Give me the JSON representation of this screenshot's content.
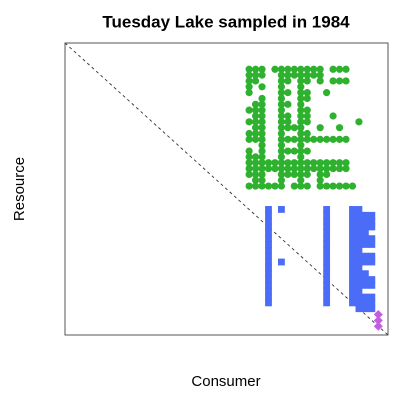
{
  "chart_data": {
    "type": "scatter",
    "title": "Tuesday Lake sampled in 1984",
    "x_label": "Consumer",
    "y_label": "Resource",
    "xlim": [
      0.5,
      50.5
    ],
    "ylim": [
      50.5,
      0.5
    ],
    "series": [
      {
        "color": "#2eb12e",
        "marker": "circle",
        "rows": [
          {
            "y": 5,
            "x": [
              29,
              30,
              31,
              33,
              34,
              35,
              36,
              37,
              38,
              39,
              40,
              42,
              43,
              44
            ]
          },
          {
            "y": 6,
            "x": [
              29,
              30,
              31,
              34,
              35,
              36,
              37,
              38,
              39,
              40
            ]
          },
          {
            "y": 7,
            "x": [
              29,
              30,
              34,
              35,
              37,
              38,
              40,
              42,
              43,
              44
            ]
          },
          {
            "y": 8,
            "x": [
              29,
              31,
              34,
              37
            ]
          },
          {
            "y": 9,
            "x": [
              29,
              34,
              35,
              37,
              38,
              41
            ]
          },
          {
            "y": 10,
            "x": [
              31,
              34,
              37,
              38
            ]
          },
          {
            "y": 11,
            "x": [
              30,
              31,
              34,
              35,
              37
            ]
          },
          {
            "y": 12,
            "x": [
              29,
              30,
              31,
              34,
              37,
              38
            ]
          },
          {
            "y": 13,
            "x": [
              30,
              31,
              34,
              35,
              37,
              38,
              42
            ]
          },
          {
            "y": 14,
            "x": [
              29,
              30,
              31,
              34,
              35,
              37,
              38,
              46
            ]
          },
          {
            "y": 15,
            "x": [
              30,
              31,
              34,
              35,
              36,
              37,
              40,
              43
            ]
          },
          {
            "y": 16,
            "x": [
              29,
              30,
              31,
              34,
              37,
              38
            ]
          },
          {
            "y": 17,
            "x": [
              29,
              30,
              31,
              34,
              35,
              36,
              37,
              38,
              39,
              40,
              41,
              42,
              43,
              44
            ]
          },
          {
            "y": 18,
            "x": [
              31,
              34,
              37
            ]
          },
          {
            "y": 19,
            "x": [
              29,
              31,
              34,
              35,
              36,
              37,
              38
            ]
          },
          {
            "y": 20,
            "x": [
              29,
              30,
              31,
              34,
              37
            ]
          },
          {
            "y": 21,
            "x": [
              29,
              30,
              31,
              32,
              33,
              34,
              35,
              36,
              37,
              38,
              39,
              40,
              41,
              42,
              43,
              44
            ]
          },
          {
            "y": 22,
            "x": [
              29,
              30,
              31,
              32,
              33,
              34,
              35,
              36,
              37,
              38,
              39,
              40,
              41,
              42,
              43,
              44
            ]
          },
          {
            "y": 23,
            "x": [
              29,
              30,
              31,
              34,
              35,
              36,
              37,
              38,
              40,
              41
            ]
          },
          {
            "y": 24,
            "x": [
              30,
              31,
              34,
              37,
              40
            ]
          },
          {
            "y": 25,
            "x": [
              29,
              30,
              31,
              32,
              33,
              34,
              36,
              37,
              38,
              40,
              41,
              42,
              43,
              44,
              45
            ]
          }
        ]
      },
      {
        "color": "#4a6cf7",
        "marker": "square",
        "rows": [
          {
            "y": 29,
            "x": [
              32,
              34,
              41,
              45,
              46
            ]
          },
          {
            "y": 30,
            "x": [
              32,
              41,
              45,
              46,
              47,
              48
            ]
          },
          {
            "y": 31,
            "x": [
              32,
              41,
              45,
              46,
              47,
              48
            ]
          },
          {
            "y": 32,
            "x": [
              32,
              41,
              45,
              46,
              47,
              48
            ]
          },
          {
            "y": 33,
            "x": [
              32,
              41,
              45,
              46,
              47
            ]
          },
          {
            "y": 34,
            "x": [
              32,
              41,
              45,
              46,
              47,
              48
            ]
          },
          {
            "y": 35,
            "x": [
              32,
              41,
              45,
              46,
              47,
              48
            ]
          },
          {
            "y": 36,
            "x": [
              32,
              41,
              45,
              46
            ]
          },
          {
            "y": 37,
            "x": [
              32,
              41,
              45,
              46,
              47,
              48
            ]
          },
          {
            "y": 38,
            "x": [
              32,
              34,
              41,
              45,
              46,
              47,
              48
            ]
          },
          {
            "y": 39,
            "x": [
              32,
              41,
              45,
              46
            ]
          },
          {
            "y": 40,
            "x": [
              32,
              41,
              45,
              46,
              47
            ]
          },
          {
            "y": 41,
            "x": [
              32,
              41,
              45,
              46,
              47,
              48
            ]
          },
          {
            "y": 42,
            "x": [
              32,
              41,
              45,
              46,
              47,
              48
            ]
          },
          {
            "y": 43,
            "x": [
              32,
              41,
              45,
              46
            ]
          },
          {
            "y": 44,
            "x": [
              32,
              41,
              45,
              46,
              47,
              48
            ]
          },
          {
            "y": 45,
            "x": [
              32,
              41,
              45,
              46,
              47,
              48
            ]
          },
          {
            "y": 46,
            "x": [
              46,
              47,
              48
            ]
          }
        ]
      },
      {
        "color": "#c25fe0",
        "marker": "diamond",
        "rows": [
          {
            "y": 47,
            "x": [
              49
            ]
          },
          {
            "y": 48,
            "x": [
              49
            ]
          },
          {
            "y": 49,
            "x": [
              49
            ]
          }
        ]
      }
    ]
  }
}
